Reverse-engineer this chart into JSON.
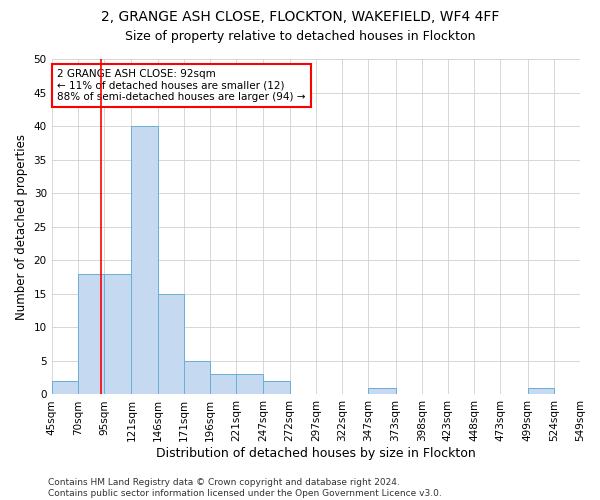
{
  "title1": "2, GRANGE ASH CLOSE, FLOCKTON, WAKEFIELD, WF4 4FF",
  "title2": "Size of property relative to detached houses in Flockton",
  "xlabel": "Distribution of detached houses by size in Flockton",
  "ylabel": "Number of detached properties",
  "bin_edges": [
    45,
    70,
    95,
    121,
    146,
    171,
    196,
    221,
    247,
    272,
    297,
    322,
    347,
    373,
    398,
    423,
    448,
    473,
    499,
    524,
    549
  ],
  "counts": [
    2,
    18,
    18,
    40,
    15,
    5,
    3,
    3,
    2,
    0,
    0,
    0,
    1,
    0,
    0,
    0,
    0,
    0,
    1,
    0
  ],
  "bar_color": "#c5d9f0",
  "bar_edge_color": "#6baed6",
  "red_line_x": 92,
  "annotation_line1": "2 GRANGE ASH CLOSE: 92sqm",
  "annotation_line2": "← 11% of detached houses are smaller (12)",
  "annotation_line3": "88% of semi-detached houses are larger (94) →",
  "annotation_box_color": "white",
  "annotation_box_edge_color": "red",
  "ylim": [
    0,
    50
  ],
  "yticks": [
    0,
    5,
    10,
    15,
    20,
    25,
    30,
    35,
    40,
    45,
    50
  ],
  "background_color": "white",
  "grid_color": "#d0d0d0",
  "footer_text": "Contains HM Land Registry data © Crown copyright and database right 2024.\nContains public sector information licensed under the Open Government Licence v3.0.",
  "title1_fontsize": 10,
  "title2_fontsize": 9,
  "xlabel_fontsize": 9,
  "ylabel_fontsize": 8.5,
  "tick_fontsize": 7.5,
  "annotation_fontsize": 7.5,
  "footer_fontsize": 6.5
}
